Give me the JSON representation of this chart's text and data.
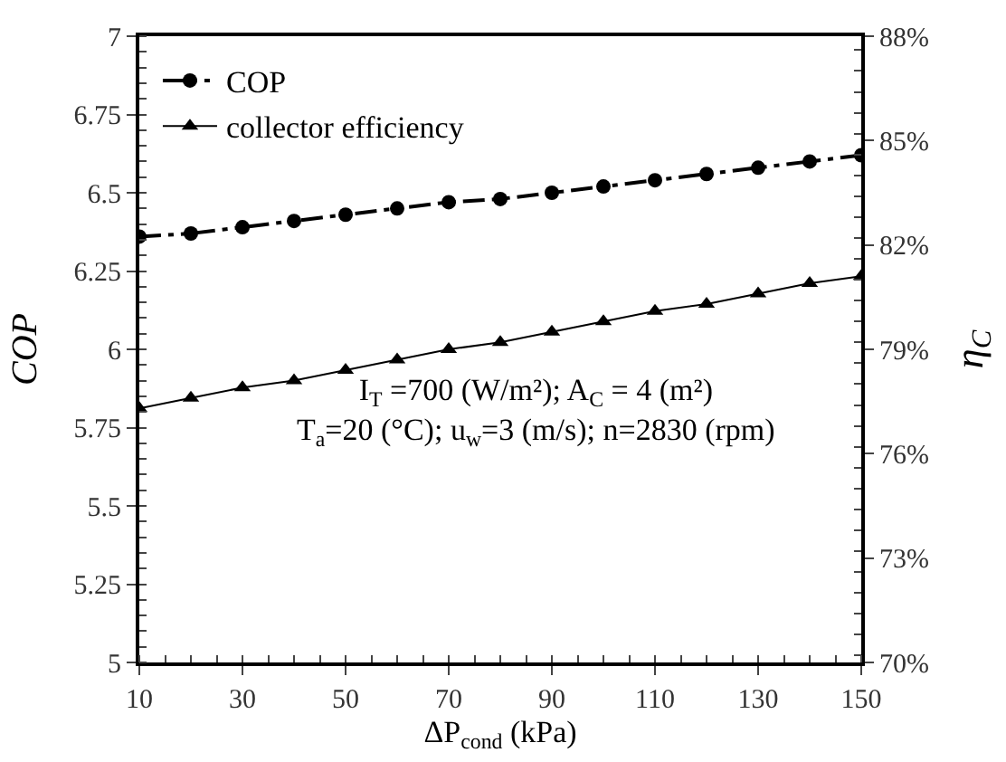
{
  "chart_data": {
    "type": "line",
    "xlabel": "ΔP$_{cond}$ (kPa)",
    "ylabel": "COP",
    "y2label": "η$_{C}$",
    "x": [
      10,
      20,
      30,
      40,
      50,
      60,
      70,
      80,
      90,
      100,
      110,
      120,
      130,
      140,
      150
    ],
    "xlim": [
      10,
      150
    ],
    "xticks": [
      10,
      30,
      50,
      70,
      90,
      110,
      130,
      150
    ],
    "ylim": [
      5,
      7
    ],
    "yticks": [
      5,
      5.25,
      5.5,
      5.75,
      6,
      6.25,
      6.5,
      6.75,
      7
    ],
    "y2lim": [
      70,
      88
    ],
    "y2ticks": [
      {
        "value": 70,
        "label": "70%"
      },
      {
        "value": 73,
        "label": "73%"
      },
      {
        "value": 76,
        "label": "76%"
      },
      {
        "value": 79,
        "label": "79%"
      },
      {
        "value": 82,
        "label": "82%"
      },
      {
        "value": 85,
        "label": "85%"
      },
      {
        "value": 88,
        "label": "88%"
      }
    ],
    "series": [
      {
        "name": "COP",
        "color": "#000000",
        "marker": "circle",
        "line_style": "dashed",
        "values": [
          6.36,
          6.37,
          6.39,
          6.41,
          6.43,
          6.45,
          6.47,
          6.48,
          6.5,
          6.52,
          6.54,
          6.56,
          6.58,
          6.6,
          6.62
        ]
      },
      {
        "name": "collector efficiency",
        "color": "#000000",
        "marker": "triangle",
        "line_style": "solid",
        "axis": "y2",
        "values": [
          77.3,
          77.6,
          77.9,
          78.1,
          78.4,
          78.7,
          79.0,
          79.2,
          79.5,
          79.8,
          80.1,
          80.3,
          80.6,
          80.9,
          81.1
        ]
      }
    ],
    "annotations": [
      "I$_{T}$ =700 (W/m²); A$_{C}$ = 4 (m²)",
      "T$_{a}$=20 (°C); u$_{w}$=3 (m/s); n=2830 (rpm)"
    ],
    "legend": "top left"
  }
}
